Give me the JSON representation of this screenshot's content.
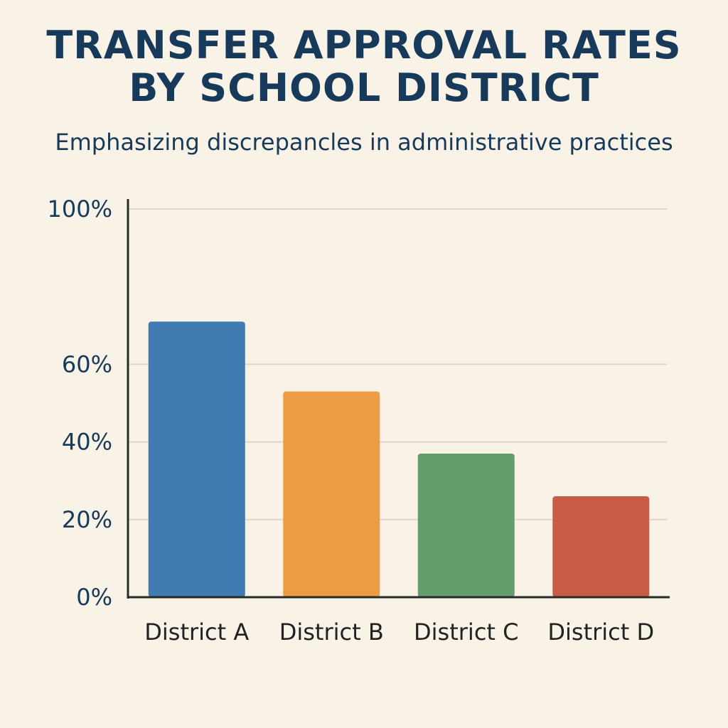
{
  "chart_data": {
    "type": "bar",
    "title_lines": [
      "TRANSFER APPROVAL RATES",
      "BY SCHOOL DISTRICT"
    ],
    "subtitle": "Emphasizing discrepancles in administrative practices",
    "categories": [
      "District A",
      "District B",
      "District C",
      "District D"
    ],
    "values": [
      71,
      53,
      37,
      26
    ],
    "colors": [
      "#3f7bb0",
      "#ec9c42",
      "#659e6c",
      "#c85c46"
    ],
    "y_ticks": [
      0,
      20,
      40,
      60,
      100
    ],
    "y_tick_labels": [
      "0%",
      "20%",
      "40%",
      "60%",
      "100%"
    ],
    "ylim": [
      0,
      100
    ],
    "grid": true,
    "legend": "none"
  }
}
